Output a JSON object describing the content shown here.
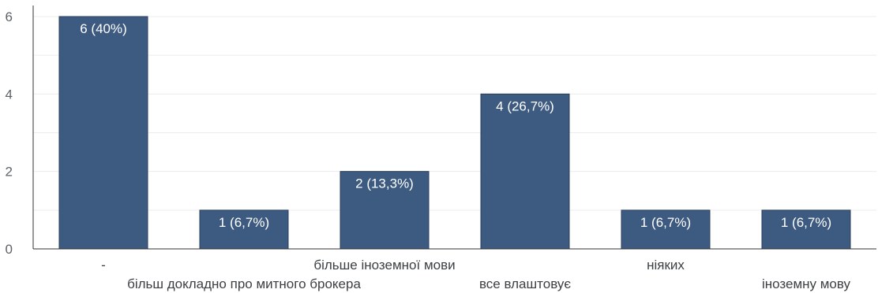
{
  "chart_data": {
    "type": "bar",
    "categories": [
      "-",
      "більш докладно про митного брокера",
      "більше іноземної мови",
      "все влаштовує",
      "ніяких",
      "іноземну мову"
    ],
    "values": [
      6,
      1,
      2,
      4,
      1,
      1
    ],
    "data_labels": [
      "6 (40%)",
      "1 (6,7%)",
      "2 (13,3%)",
      "4 (26,7%)",
      "1 (6,7%)",
      "1 (6,7%)"
    ],
    "y_ticks": [
      "0",
      "2",
      "4",
      "6"
    ],
    "ylim": [
      0,
      6
    ],
    "grid": true,
    "legend": "none",
    "bar_color": "#3d5a80",
    "grid_color": "#ececec",
    "axis_color": "#333333"
  }
}
